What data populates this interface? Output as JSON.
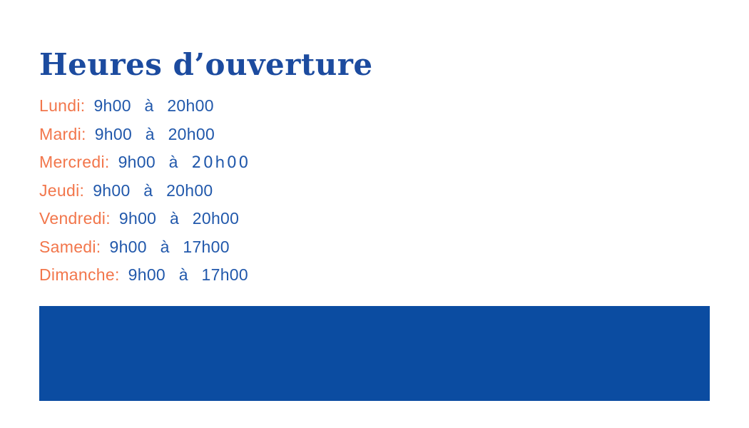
{
  "page": {
    "title": "Heures d’ouverture"
  },
  "colors": {
    "title": "#1c4b9f",
    "day": "#f2764b",
    "time": "#2158ab",
    "banner": "#0b4ca1"
  },
  "hours": [
    {
      "day": "Lundi:",
      "start": "9h00",
      "sep": "à",
      "end": "20h00"
    },
    {
      "day": "Mardi:",
      "start": "9h00",
      "sep": "à",
      "end": "20h00"
    },
    {
      "day": "Mercredi:",
      "start": "9h00",
      "sep": "à",
      "end": "20h00",
      "end_alt": true
    },
    {
      "day": "Jeudi:",
      "start": "9h00",
      "sep": "à",
      "end": "20h00"
    },
    {
      "day": "Vendredi:",
      "start": "9h00",
      "sep": "à",
      "end": "20h00"
    },
    {
      "day": "Samedi:",
      "start": "9h00",
      "sep": "à",
      "end": "17h00"
    },
    {
      "day": "Dimanche:",
      "start": "9h00",
      "sep": "à",
      "end": "17h00"
    }
  ]
}
